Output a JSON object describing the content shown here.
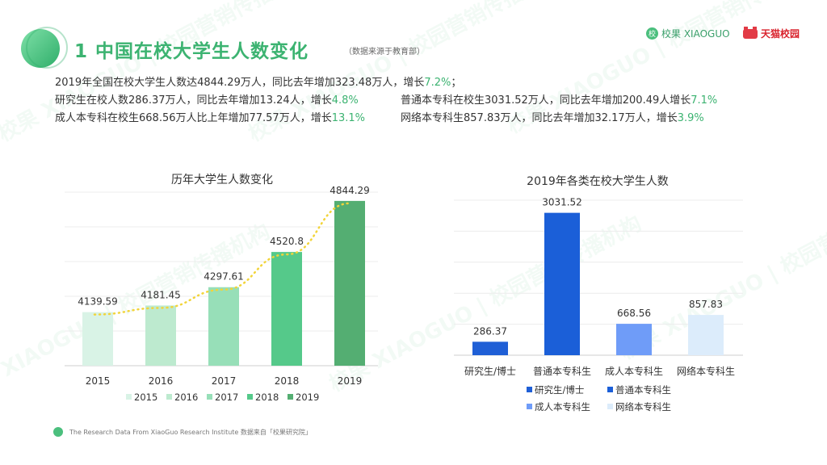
{
  "header": {
    "title": "1 中国在校大学生人数变化",
    "note": "（数据来源于教育部）",
    "brand_xiaoguo": "校果 XIAOGUO",
    "brand_xiaoguo_mark": "校",
    "brand_tmall": "天猫校园"
  },
  "summary": {
    "line1": {
      "text": "2019年全国在校大学生人数达4844.29万人，同比去年增加323.48万人，增长",
      "pct": "7.2%",
      "tail": "；"
    },
    "line2a": {
      "text": "研究生在校人数286.37万人，同比去年增加13.24人，增长",
      "pct": "4.8%"
    },
    "line2b": {
      "text": "普通本专科在校生3031.52万人，同比去年增加200.49人增长",
      "pct": "7.1%"
    },
    "line3a": {
      "text": "成人本专科在校生668.56万人比上年增加77.57万人，增长",
      "pct": "13.1%"
    },
    "line3b": {
      "text": "网络本专科生857.83万人，同比去年增加32.17万人，增长",
      "pct": "3.9%"
    }
  },
  "footer": {
    "text": "The Research Data  From XiaoGuo Research Institute 数据来自「校果研究院」"
  },
  "watermark": {
    "text": "校果 XIAOGUO | 校园营销传播机构"
  },
  "chart_data": [
    {
      "type": "bar",
      "title": "历年大学生人数变化",
      "categories": [
        "2015",
        "2016",
        "2017",
        "2018",
        "2019"
      ],
      "values": [
        4139.59,
        4181.45,
        4297.61,
        4520.8,
        4844.29
      ],
      "value_labels": [
        "4139.59",
        "4181.45",
        "4297.61",
        "4520.8",
        "4844.29"
      ],
      "colors": [
        "#d9f3e6",
        "#bdeacf",
        "#97dfb8",
        "#55c98a",
        "#54ae72"
      ],
      "legend": [
        "2015",
        "2016",
        "2017",
        "2018",
        "2019"
      ],
      "legend_position": "bottom",
      "trendline": {
        "color": "#f2d43a",
        "style": "dotted"
      },
      "grid": true,
      "ylim": [
        3800,
        4900
      ]
    },
    {
      "type": "bar",
      "title": "2019年各类在校大学生人数",
      "categories": [
        "研究生/博士",
        "普通本专科生",
        "成人本专科生",
        "网络本专科生"
      ],
      "values": [
        286.37,
        3031.52,
        668.56,
        857.83
      ],
      "value_labels": [
        "286.37",
        "3031.52",
        "668.56",
        "857.83"
      ],
      "colors": [
        "#1f5fd6",
        "#1b5fd8",
        "#6f9cf8",
        "#dcecfb"
      ],
      "legend": [
        "研究生/博士",
        "普通本专科生",
        "成人本专科生",
        "网络本专科生"
      ],
      "legend_position": "bottom",
      "grid": true,
      "ylim": [
        0,
        3300
      ]
    }
  ]
}
